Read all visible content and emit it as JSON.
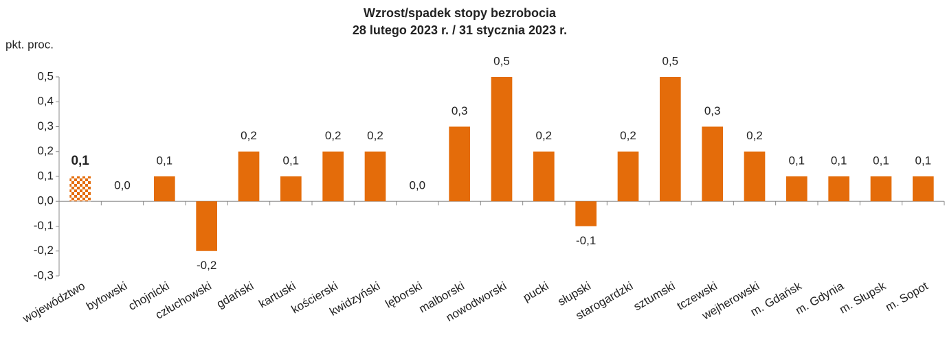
{
  "chart_data": {
    "type": "bar",
    "title": "Wzrost/spadek stopy bezrobocia",
    "subtitle": "28 lutego 2023 r. / 31 stycznia 2023 r.",
    "y_label": "pkt. proc.",
    "categories": [
      "województwo",
      "bytowski",
      "chojnicki",
      "człuchowski",
      "gdański",
      "kartuski",
      "kościerski",
      "kwidzyński",
      "lęborski",
      "malborski",
      "nowodworski",
      "pucki",
      "słupski",
      "starogardzki",
      "sztumski",
      "tczewski",
      "wejherowski",
      "m. Gdańsk",
      "m. Gdynia",
      "m. Słupsk",
      "m. Sopot"
    ],
    "values": [
      0.1,
      0.0,
      0.1,
      -0.2,
      0.2,
      0.1,
      0.2,
      0.2,
      0.0,
      0.3,
      0.5,
      0.2,
      -0.1,
      0.2,
      0.5,
      0.3,
      0.2,
      0.1,
      0.1,
      0.1,
      0.1
    ],
    "value_labels": [
      "0,1",
      "0,0",
      "0,1",
      "-0,2",
      "0,2",
      "0,1",
      "0,2",
      "0,2",
      "0,0",
      "0,3",
      "0,5",
      "0,2",
      "-0,1",
      "0,2",
      "0,5",
      "0,3",
      "0,2",
      "0,1",
      "0,1",
      "0,1",
      "0,1"
    ],
    "color": "#e46c0a",
    "highlight_category": "województwo",
    "ylim": [
      -0.3,
      0.5
    ],
    "yticks": [
      {
        "value": -0.3,
        "label": "-0,3"
      },
      {
        "value": -0.2,
        "label": "-0,2"
      },
      {
        "value": -0.1,
        "label": "-0,1"
      },
      {
        "value": 0.0,
        "label": "0,0"
      },
      {
        "value": 0.1,
        "label": "0,1"
      },
      {
        "value": 0.2,
        "label": "0,2"
      },
      {
        "value": 0.3,
        "label": "0,3"
      },
      {
        "value": 0.4,
        "label": "0,4"
      },
      {
        "value": 0.5,
        "label": "0,5"
      }
    ],
    "grid": false
  }
}
